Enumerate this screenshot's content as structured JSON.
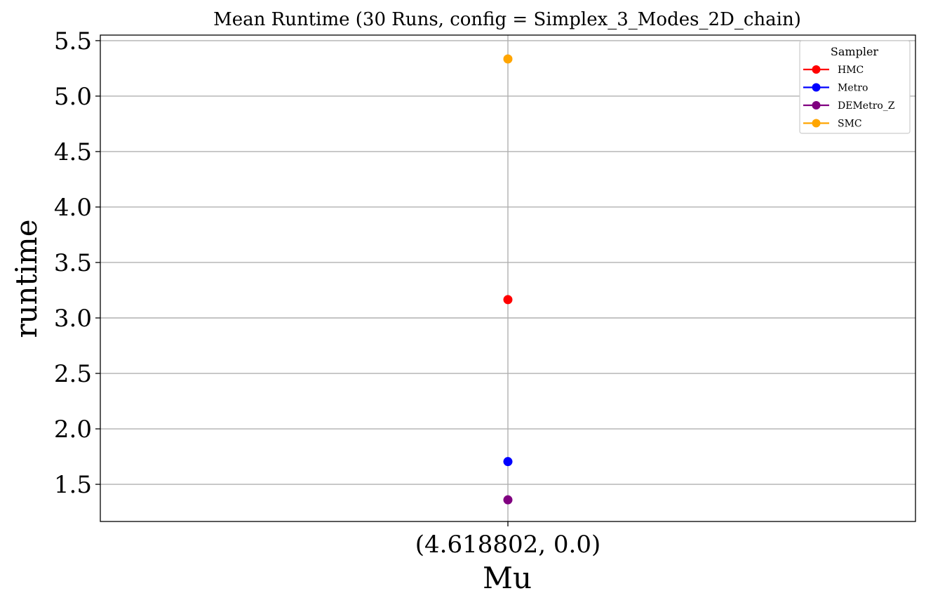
{
  "chart_data": {
    "type": "scatter",
    "title": "Mean Runtime (30 Runs, config = Simplex_3_Modes_2D_chain)",
    "xlabel": "Mu",
    "ylabel": "runtime",
    "categories": [
      "(4.618802, 0.0)"
    ],
    "ylim": [
      1.165,
      5.55
    ],
    "yticks": [
      1.5,
      2.0,
      2.5,
      3.0,
      3.5,
      4.0,
      4.5,
      5.0,
      5.5
    ],
    "ytick_labels": [
      "1.5",
      "2.0",
      "2.5",
      "3.0",
      "3.5",
      "4.0",
      "4.5",
      "5.0",
      "5.5"
    ],
    "grid": true,
    "legend": {
      "title": "Sampler",
      "position": "top-right"
    },
    "series": [
      {
        "name": "HMC",
        "color": "#ff0000",
        "values": [
          3.165
        ]
      },
      {
        "name": "Metro",
        "color": "#0000ff",
        "values": [
          1.705
        ]
      },
      {
        "name": "DEMetro_Z",
        "color": "#800080",
        "values": [
          1.36
        ]
      },
      {
        "name": "SMC",
        "color": "#ffa500",
        "values": [
          5.335
        ]
      }
    ]
  }
}
